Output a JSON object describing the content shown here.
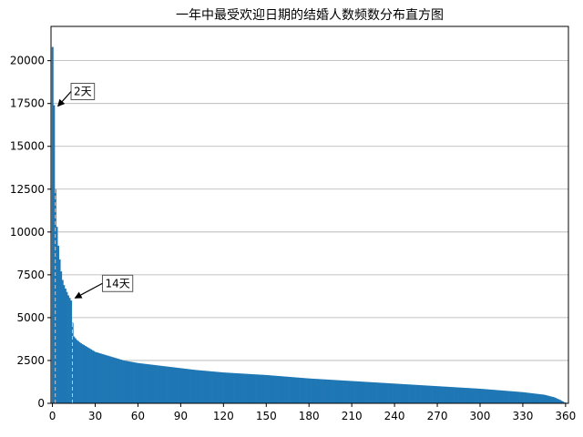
{
  "chart_data": {
    "type": "bar",
    "title": "一年中最受欢迎日期的结婚人数频数分布直方图",
    "xlabel": "",
    "ylabel": "",
    "xlim": [
      -1,
      362
    ],
    "ylim": [
      0,
      22000
    ],
    "x_ticks": [
      0,
      30,
      60,
      90,
      120,
      150,
      180,
      210,
      240,
      270,
      300,
      330,
      360
    ],
    "y_ticks": [
      0,
      2500,
      5000,
      7500,
      10000,
      12500,
      15000,
      17500,
      20000
    ],
    "grid": "y",
    "bar_color": "#1f77b4",
    "profile": [
      [
        0,
        20800
      ],
      [
        1,
        17400
      ],
      [
        2,
        12500
      ],
      [
        3,
        10300
      ],
      [
        4,
        9200
      ],
      [
        5,
        8400
      ],
      [
        6,
        7700
      ],
      [
        7,
        7200
      ],
      [
        8,
        6900
      ],
      [
        9,
        6700
      ],
      [
        10,
        6500
      ],
      [
        11,
        6300
      ],
      [
        12,
        6150
      ],
      [
        13,
        6000
      ],
      [
        14,
        4700
      ],
      [
        15,
        3900
      ],
      [
        17,
        3700
      ],
      [
        20,
        3500
      ],
      [
        25,
        3250
      ],
      [
        30,
        3000
      ],
      [
        40,
        2750
      ],
      [
        50,
        2500
      ],
      [
        60,
        2350
      ],
      [
        80,
        2150
      ],
      [
        100,
        1950
      ],
      [
        120,
        1800
      ],
      [
        150,
        1650
      ],
      [
        180,
        1450
      ],
      [
        210,
        1300
      ],
      [
        240,
        1150
      ],
      [
        270,
        1000
      ],
      [
        300,
        850
      ],
      [
        330,
        650
      ],
      [
        345,
        500
      ],
      [
        352,
        350
      ],
      [
        356,
        200
      ],
      [
        359,
        60
      ],
      [
        361,
        10
      ]
    ],
    "vlines": [
      2,
      14
    ],
    "annotations": [
      {
        "text": "2天",
        "x": 2,
        "y": 17400,
        "text_x": 15,
        "text_y": 18200
      },
      {
        "text": "14天",
        "x": 14,
        "y": 6200,
        "text_x": 37,
        "text_y": 7000
      }
    ]
  }
}
